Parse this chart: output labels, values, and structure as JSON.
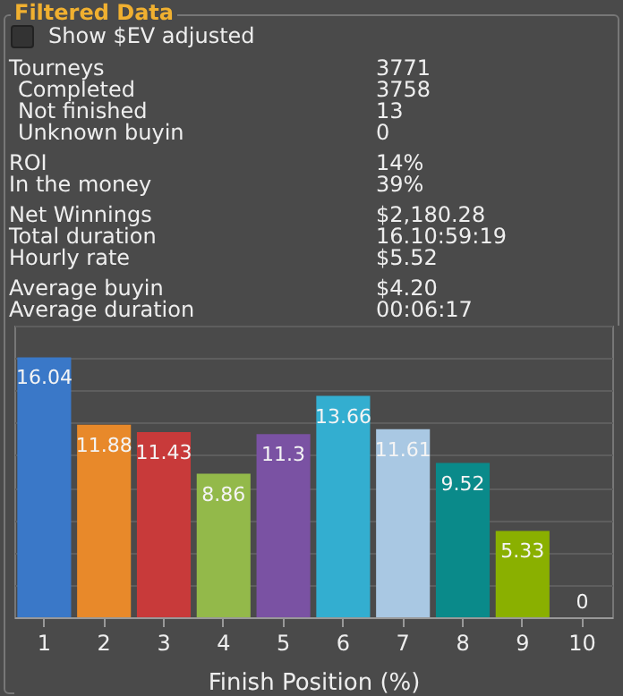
{
  "chart_data": {
    "type": "bar",
    "title": "Filtered Data",
    "xlabel": "Finish Position (%)",
    "annotations": [
      "Show $EV adjusted",
      "Tourneys",
      "3771",
      "Completed",
      "3758",
      "Not finished",
      "13",
      "Unknown buyin",
      "0",
      "ROI",
      "14%",
      "In the money",
      "39%",
      "Net Winnings",
      "$2,180.28",
      "Total duration",
      "16.10:59:19",
      "Hourly rate",
      "$5.52",
      "Average buyin",
      "$4.20",
      "Average duration",
      "00:06:17"
    ],
    "categories": [
      "1",
      "2",
      "3",
      "4",
      "5",
      "6",
      "7",
      "8",
      "9",
      "10"
    ],
    "values": [
      16.04,
      11.88,
      11.43,
      8.86,
      11.3,
      13.66,
      11.61,
      9.52,
      5.33,
      0
    ],
    "colors": [
      "#3a78c8",
      "#e8892a",
      "#c83a3a",
      "#93b94a",
      "#7a52a3",
      "#33aed0",
      "#a9c8e3",
      "#0a8a8a",
      "#8ab000",
      null
    ],
    "tick_labels": "x",
    "grid": "y",
    "data_labels": true
  }
}
